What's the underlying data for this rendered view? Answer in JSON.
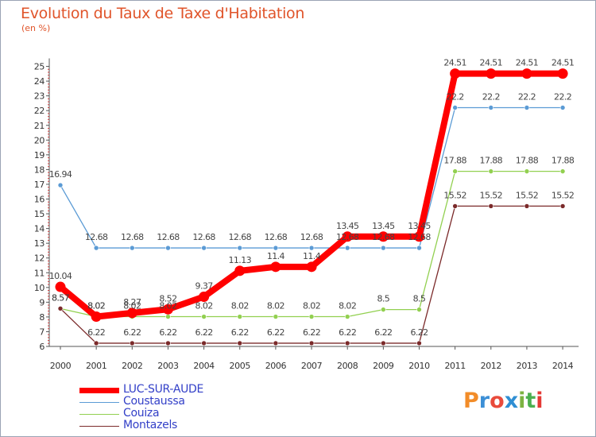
{
  "title": "Evolution du Taux de Taxe d'Habitation",
  "unit": "(en %)",
  "logo": {
    "text": "Proxiti",
    "colors": [
      "#f28c28",
      "#3c8fd6",
      "#e94b3c",
      "#2f8fd3",
      "#7cb342",
      "#4caf50",
      "#e53935"
    ]
  },
  "chart_data": {
    "type": "line",
    "title": "Evolution du Taux de Taxe d'Habitation",
    "ylabel": "(en %)",
    "xlabel": "",
    "x": [
      "2000",
      "2001",
      "2002",
      "2003",
      "2004",
      "2005",
      "2006",
      "2007",
      "2008",
      "2009",
      "2010",
      "2011",
      "2012",
      "2013",
      "2014"
    ],
    "ylim": [
      6,
      25
    ],
    "yticks": [
      "6",
      "7",
      "8",
      "9",
      "10",
      "11",
      "12",
      "13",
      "14",
      "15",
      "16",
      "17",
      "18",
      "19",
      "20",
      "21",
      "22",
      "23",
      "24",
      "25"
    ],
    "grid": false,
    "legend": "bottom-left",
    "series": [
      {
        "name": "LUC-SUR-AUDE",
        "color": "#ff0000",
        "emphasis": true,
        "values": [
          10.04,
          8.02,
          8.27,
          8.52,
          9.37,
          11.13,
          11.4,
          11.4,
          13.45,
          13.45,
          13.45,
          24.51,
          24.51,
          24.51,
          24.51
        ],
        "labels": [
          "10.04",
          "8.02",
          "8.27",
          "8.52",
          "9.37",
          "11.13",
          "11.4",
          "11.4",
          "13.45",
          "13.45",
          "13.45",
          "24.51",
          "24.51",
          "24.51",
          "24.51"
        ]
      },
      {
        "name": "Coustaussa",
        "color": "#5b9bd5",
        "values": [
          16.94,
          12.68,
          12.68,
          12.68,
          12.68,
          12.68,
          12.68,
          12.68,
          12.68,
          12.68,
          12.68,
          22.2,
          22.2,
          22.2,
          22.2
        ],
        "labels": [
          "16.94",
          "12.68",
          "12.68",
          "12.68",
          "12.68",
          "12.68",
          "12.68",
          "12.68",
          "12.68",
          "12.68",
          "12.68",
          "22.2",
          "22.2",
          "22.2",
          "22.2"
        ]
      },
      {
        "name": "Couiza",
        "color": "#92d050",
        "values": [
          8.57,
          8.02,
          8.02,
          8.02,
          8.02,
          8.02,
          8.02,
          8.02,
          8.02,
          8.5,
          8.5,
          17.88,
          17.88,
          17.88,
          17.88
        ],
        "labels": [
          "8.57",
          "8.02",
          "8.02",
          "8.02",
          "8.02",
          "8.02",
          "8.02",
          "8.02",
          "8.02",
          "8.5",
          "8.5",
          "17.88",
          "17.88",
          "17.88",
          "17.88"
        ]
      },
      {
        "name": "Montazels",
        "color": "#7b2a2a",
        "values": [
          8.57,
          6.22,
          6.22,
          6.22,
          6.22,
          6.22,
          6.22,
          6.22,
          6.22,
          6.22,
          6.22,
          15.52,
          15.52,
          15.52,
          15.52
        ],
        "labels": [
          "8.57",
          "6.22",
          "6.22",
          "6.22",
          "6.22",
          "6.22",
          "6.22",
          "6.22",
          "6.22",
          "6.22",
          "6.22",
          "15.52",
          "15.52",
          "15.52",
          "15.52"
        ]
      }
    ]
  }
}
